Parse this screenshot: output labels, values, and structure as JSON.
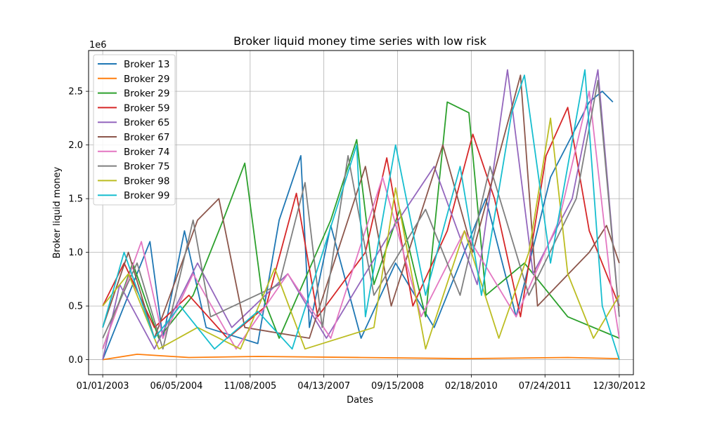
{
  "chart_data": {
    "type": "line",
    "title": "Broker liquid money time series with low risk",
    "xlabel": "Dates",
    "ylabel": "Broker liquid money",
    "y_scale_label": "1e6",
    "x_tick_labels": [
      "01/01/2003",
      "06/05/2004",
      "11/08/2005",
      "04/13/2007",
      "09/15/2008",
      "02/18/2010",
      "07/24/2011",
      "12/30/2012"
    ],
    "x_tick_dates": [
      "2003-01-01",
      "2004-06-05",
      "2005-11-08",
      "2007-04-13",
      "2008-09-15",
      "2010-02-18",
      "2011-07-24",
      "2012-12-30"
    ],
    "xlim": [
      "2002-09-23",
      "2013-04-09"
    ],
    "y_ticks": [
      0.0,
      0.5,
      1.0,
      1.5,
      2.0,
      2.5
    ],
    "y_tick_labels": [
      "0.0",
      "0.5",
      "1.0",
      "1.5",
      "2.0",
      "2.5"
    ],
    "ylim": [
      -140000,
      2880000
    ],
    "grid": true,
    "legend_position": "upper-left",
    "series": [
      {
        "name": "Broker 13",
        "color": "#1f77b4",
        "points": [
          [
            "2003-01-01",
            0
          ],
          [
            "2003-06-01",
            500000
          ],
          [
            "2003-12-01",
            1100000
          ],
          [
            "2004-03-01",
            200000
          ],
          [
            "2004-08-01",
            1200000
          ],
          [
            "2005-01-01",
            300000
          ],
          [
            "2006-01-01",
            150000
          ],
          [
            "2006-06-01",
            1300000
          ],
          [
            "2006-11-01",
            1900000
          ],
          [
            "2007-01-01",
            300000
          ],
          [
            "2007-06-01",
            1250000
          ],
          [
            "2008-01-01",
            200000
          ],
          [
            "2008-09-01",
            900000
          ],
          [
            "2009-06-01",
            300000
          ],
          [
            "2010-06-01",
            1500000
          ],
          [
            "2011-01-01",
            400000
          ],
          [
            "2011-09-01",
            1700000
          ],
          [
            "2012-06-01",
            2400000
          ],
          [
            "2012-09-01",
            2500000
          ],
          [
            "2012-11-15",
            2400000
          ]
        ]
      },
      {
        "name": "Broker 29",
        "color": "#ff7f0e",
        "points": [
          [
            "2003-01-01",
            0
          ],
          [
            "2003-09-01",
            50000
          ],
          [
            "2004-09-01",
            20000
          ],
          [
            "2006-01-01",
            30000
          ],
          [
            "2008-01-01",
            20000
          ],
          [
            "2010-01-01",
            10000
          ],
          [
            "2012-01-01",
            20000
          ],
          [
            "2012-12-30",
            10000
          ]
        ]
      },
      {
        "name": "Broker 29",
        "color": "#2ca02c",
        "points": [
          [
            "2003-01-01",
            100000
          ],
          [
            "2003-08-01",
            900000
          ],
          [
            "2004-02-01",
            200000
          ],
          [
            "2004-10-01",
            600000
          ],
          [
            "2005-05-01",
            1300000
          ],
          [
            "2005-10-01",
            1830000
          ],
          [
            "2006-02-01",
            600000
          ],
          [
            "2006-06-01",
            200000
          ],
          [
            "2007-06-01",
            1300000
          ],
          [
            "2007-12-01",
            2050000
          ],
          [
            "2008-04-01",
            700000
          ],
          [
            "2008-10-01",
            1400000
          ],
          [
            "2009-04-01",
            400000
          ],
          [
            "2009-09-01",
            2400000
          ],
          [
            "2010-02-01",
            2300000
          ],
          [
            "2010-06-01",
            600000
          ],
          [
            "2011-03-01",
            900000
          ],
          [
            "2012-01-01",
            400000
          ],
          [
            "2012-12-30",
            200000
          ]
        ]
      },
      {
        "name": "Broker 59",
        "color": "#d62728",
        "points": [
          [
            "2003-01-01",
            500000
          ],
          [
            "2003-06-01",
            900000
          ],
          [
            "2004-01-01",
            300000
          ],
          [
            "2004-09-01",
            600000
          ],
          [
            "2005-06-01",
            200000
          ],
          [
            "2006-03-01",
            500000
          ],
          [
            "2006-10-01",
            1550000
          ],
          [
            "2007-03-01",
            400000
          ],
          [
            "2008-02-01",
            1000000
          ],
          [
            "2008-07-01",
            1880000
          ],
          [
            "2009-01-01",
            500000
          ],
          [
            "2009-09-01",
            1200000
          ],
          [
            "2010-03-01",
            2100000
          ],
          [
            "2010-08-01",
            1500000
          ],
          [
            "2011-02-01",
            400000
          ],
          [
            "2011-08-01",
            1900000
          ],
          [
            "2012-01-01",
            2350000
          ],
          [
            "2012-06-01",
            1200000
          ],
          [
            "2012-12-30",
            500000
          ]
        ]
      },
      {
        "name": "Broker 65",
        "color": "#9467bd",
        "points": [
          [
            "2003-01-01",
            0
          ],
          [
            "2003-05-01",
            700000
          ],
          [
            "2004-01-01",
            100000
          ],
          [
            "2004-11-01",
            900000
          ],
          [
            "2005-07-01",
            300000
          ],
          [
            "2006-08-01",
            800000
          ],
          [
            "2007-05-01",
            200000
          ],
          [
            "2008-08-01",
            1200000
          ],
          [
            "2009-06-01",
            1800000
          ],
          [
            "2010-04-01",
            700000
          ],
          [
            "2010-11-01",
            2700000
          ],
          [
            "2011-05-01",
            800000
          ],
          [
            "2012-02-01",
            1500000
          ],
          [
            "2012-08-01",
            2700000
          ],
          [
            "2012-12-30",
            400000
          ]
        ]
      },
      {
        "name": "Broker 67",
        "color": "#8c564b",
        "points": [
          [
            "2003-01-01",
            300000
          ],
          [
            "2003-07-01",
            1000000
          ],
          [
            "2004-01-01",
            200000
          ],
          [
            "2004-11-01",
            1300000
          ],
          [
            "2005-04-01",
            1500000
          ],
          [
            "2005-10-01",
            300000
          ],
          [
            "2007-01-01",
            200000
          ],
          [
            "2008-02-01",
            1800000
          ],
          [
            "2008-08-01",
            500000
          ],
          [
            "2009-08-01",
            2000000
          ],
          [
            "2010-03-01",
            1000000
          ],
          [
            "2011-02-01",
            2650000
          ],
          [
            "2011-06-01",
            500000
          ],
          [
            "2012-06-01",
            1000000
          ],
          [
            "2012-10-01",
            1250000
          ],
          [
            "2012-12-30",
            900000
          ]
        ]
      },
      {
        "name": "Broker 74",
        "color": "#e377c2",
        "points": [
          [
            "2003-01-01",
            100000
          ],
          [
            "2003-10-01",
            1100000
          ],
          [
            "2004-03-01",
            200000
          ],
          [
            "2004-10-01",
            800000
          ],
          [
            "2005-08-01",
            100000
          ],
          [
            "2006-08-01",
            800000
          ],
          [
            "2007-06-01",
            200000
          ],
          [
            "2008-06-01",
            1700000
          ],
          [
            "2009-03-01",
            400000
          ],
          [
            "2010-01-01",
            1200000
          ],
          [
            "2011-01-01",
            400000
          ],
          [
            "2011-11-01",
            1300000
          ],
          [
            "2012-06-01",
            2500000
          ],
          [
            "2012-11-01",
            700000
          ],
          [
            "2012-12-30",
            200000
          ]
        ]
      },
      {
        "name": "Broker 75",
        "color": "#7f7f7f",
        "points": [
          [
            "2003-01-01",
            200000
          ],
          [
            "2003-09-01",
            900000
          ],
          [
            "2004-03-01",
            100000
          ],
          [
            "2004-10-01",
            1300000
          ],
          [
            "2005-02-01",
            400000
          ],
          [
            "2006-06-01",
            700000
          ],
          [
            "2006-12-01",
            1650000
          ],
          [
            "2007-04-01",
            300000
          ],
          [
            "2007-10-01",
            1900000
          ],
          [
            "2008-04-01",
            600000
          ],
          [
            "2009-04-01",
            1400000
          ],
          [
            "2009-12-01",
            600000
          ],
          [
            "2010-07-01",
            1800000
          ],
          [
            "2011-04-01",
            600000
          ],
          [
            "2012-03-01",
            1500000
          ],
          [
            "2012-08-01",
            2600000
          ],
          [
            "2012-12-30",
            400000
          ]
        ]
      },
      {
        "name": "Broker 98",
        "color": "#bcbd22",
        "points": [
          [
            "2003-01-01",
            500000
          ],
          [
            "2003-07-01",
            800000
          ],
          [
            "2004-02-01",
            100000
          ],
          [
            "2004-11-01",
            300000
          ],
          [
            "2005-09-01",
            100000
          ],
          [
            "2006-05-01",
            850000
          ],
          [
            "2006-12-01",
            100000
          ],
          [
            "2008-04-01",
            300000
          ],
          [
            "2008-09-01",
            1600000
          ],
          [
            "2009-04-01",
            100000
          ],
          [
            "2010-01-01",
            1200000
          ],
          [
            "2010-09-01",
            200000
          ],
          [
            "2011-04-01",
            1000000
          ],
          [
            "2011-09-01",
            2250000
          ],
          [
            "2012-01-01",
            800000
          ],
          [
            "2012-07-01",
            200000
          ],
          [
            "2012-12-30",
            600000
          ]
        ]
      },
      {
        "name": "Broker 99",
        "color": "#17becf",
        "points": [
          [
            "2003-01-01",
            300000
          ],
          [
            "2003-06-01",
            1000000
          ],
          [
            "2004-01-01",
            200000
          ],
          [
            "2004-07-01",
            500000
          ],
          [
            "2005-03-01",
            100000
          ],
          [
            "2006-01-01",
            450000
          ],
          [
            "2006-09-01",
            100000
          ],
          [
            "2007-12-01",
            2000000
          ],
          [
            "2008-02-01",
            400000
          ],
          [
            "2008-09-01",
            2000000
          ],
          [
            "2009-04-01",
            600000
          ],
          [
            "2009-12-01",
            1800000
          ],
          [
            "2010-05-01",
            600000
          ],
          [
            "2010-12-01",
            2300000
          ],
          [
            "2011-03-01",
            2650000
          ],
          [
            "2011-09-01",
            900000
          ],
          [
            "2012-05-01",
            2700000
          ],
          [
            "2012-09-01",
            500000
          ],
          [
            "2012-12-30",
            0
          ]
        ]
      }
    ]
  }
}
